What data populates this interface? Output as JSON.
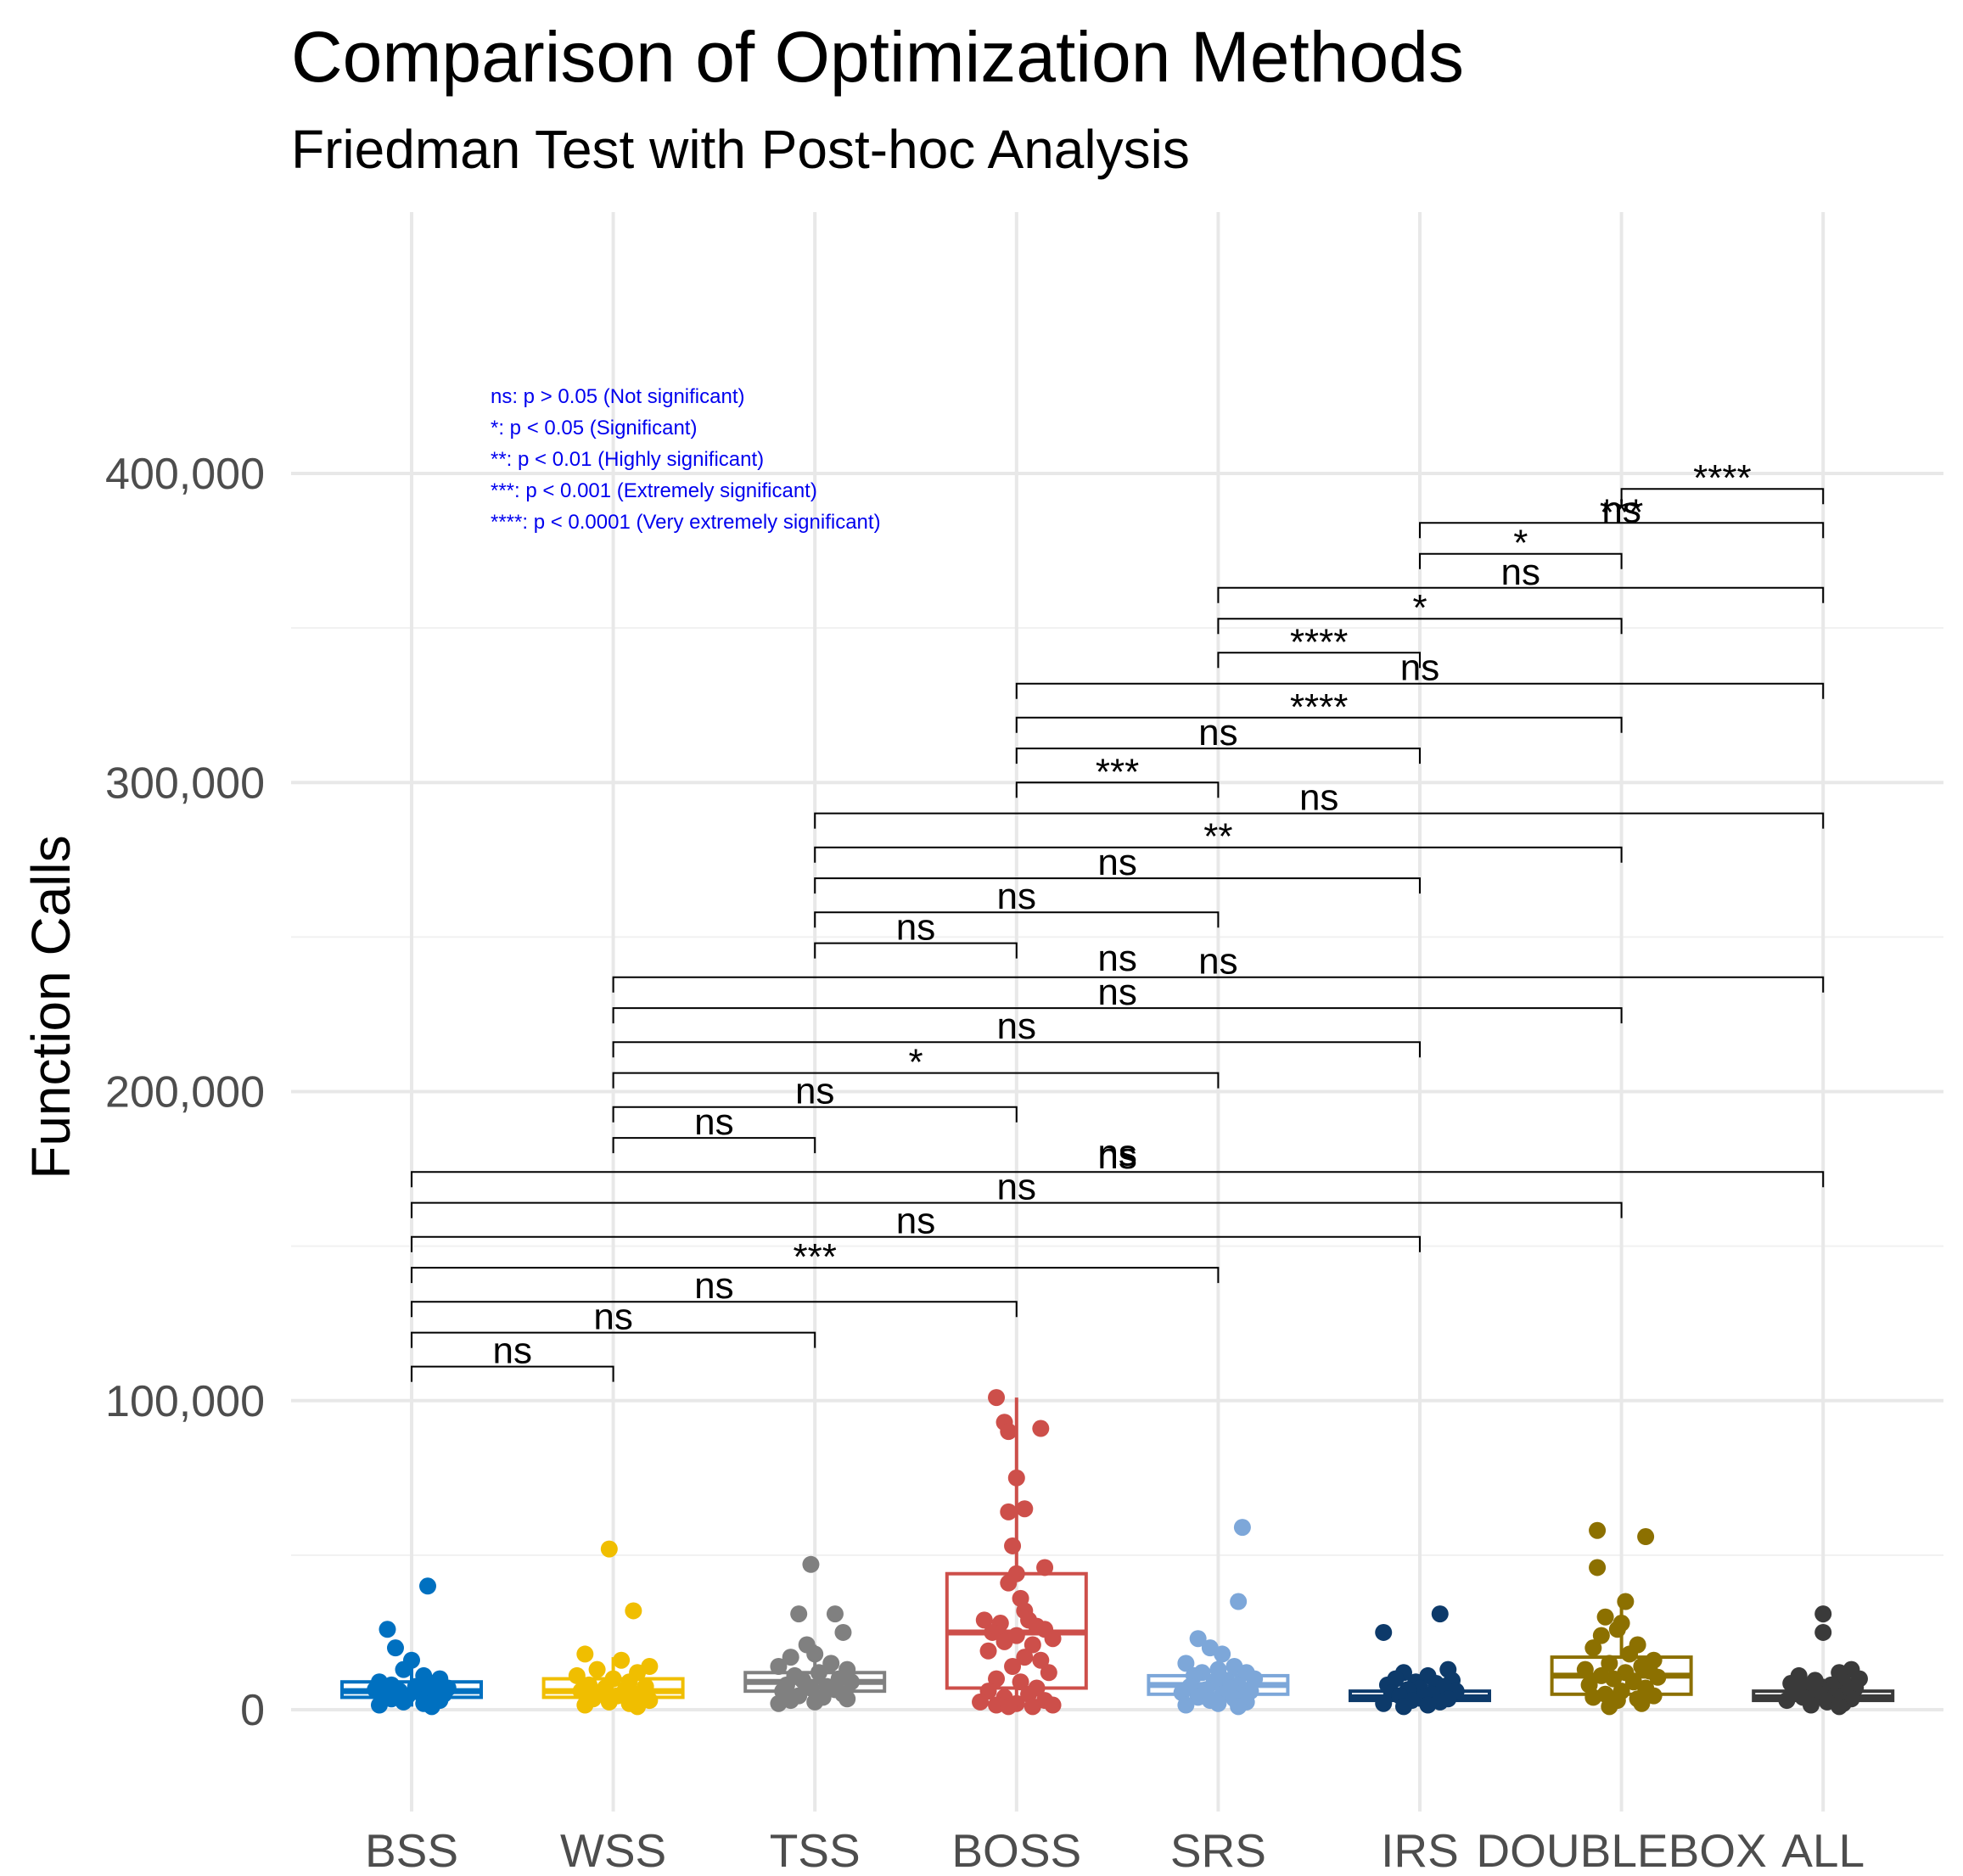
{
  "chart_data": {
    "type": "box",
    "title": "Comparison of Optimization Methods",
    "subtitle": "Friedman Test with Post-hoc Analysis",
    "ylabel": "Function Calls",
    "xlabel": "",
    "ylim": [
      -30000,
      450000
    ],
    "yticks": [
      0,
      100000,
      200000,
      300000,
      400000
    ],
    "ytick_labels": [
      "0",
      "100,000",
      "200,000",
      "300,000",
      "400,000"
    ],
    "grid": true,
    "categories": [
      "BSS",
      "WSS",
      "TSS",
      "BOSS",
      "SRS",
      "IRS",
      "DOUBLEBOX",
      "ALL"
    ],
    "colors": [
      "#0070c0",
      "#f0be00",
      "#808080",
      "#cd4f4a",
      "#7da7d9",
      "#0d3a6a",
      "#8c7000",
      "#3a3a3a"
    ],
    "boxes": [
      {
        "q1": 4000,
        "median": 6000,
        "q3": 9000,
        "whisker_low": 1000,
        "whisker_high": 16000
      },
      {
        "q1": 4000,
        "median": 6000,
        "q3": 10000,
        "whisker_low": 1000,
        "whisker_high": 17000
      },
      {
        "q1": 6000,
        "median": 9000,
        "q3": 12000,
        "whisker_low": 2000,
        "whisker_high": 21000
      },
      {
        "q1": 7000,
        "median": 25000,
        "q3": 44000,
        "whisker_low": 1000,
        "whisker_high": 101000
      },
      {
        "q1": 5000,
        "median": 8000,
        "q3": 11000,
        "whisker_low": 1000,
        "whisker_high": 20000
      },
      {
        "q1": 3000,
        "median": 4000,
        "q3": 6000,
        "whisker_low": 1000,
        "whisker_high": 10000
      },
      {
        "q1": 5000,
        "median": 11000,
        "q3": 17000,
        "whisker_low": 1000,
        "whisker_high": 34000
      },
      {
        "q1": 3000,
        "median": 4000,
        "q3": 6000,
        "whisker_low": 1000,
        "whisker_high": 10000
      }
    ],
    "points": [
      [
        [
          0.08,
          40000
        ],
        [
          -0.12,
          26000
        ],
        [
          -0.08,
          20000
        ],
        [
          0.0,
          16000
        ],
        [
          -0.04,
          13000
        ],
        [
          0.06,
          11000
        ],
        [
          0.14,
          10000
        ],
        [
          -0.16,
          9000
        ],
        [
          0.1,
          8500
        ],
        [
          -0.1,
          8000
        ],
        [
          0.02,
          7500
        ],
        [
          0.18,
          7000
        ],
        [
          -0.18,
          6500
        ],
        [
          0.12,
          6000
        ],
        [
          -0.06,
          6000
        ],
        [
          0.04,
          5500
        ],
        [
          -0.14,
          5000
        ],
        [
          0.16,
          5000
        ],
        [
          -0.02,
          4500
        ],
        [
          0.08,
          4000
        ],
        [
          -0.1,
          3500
        ],
        [
          0.14,
          3000
        ],
        [
          -0.04,
          2500
        ],
        [
          0.06,
          2000
        ],
        [
          -0.16,
          1500
        ],
        [
          0.1,
          1000
        ]
      ],
      [
        [
          -0.02,
          52000
        ],
        [
          0.1,
          32000
        ],
        [
          -0.14,
          18000
        ],
        [
          0.04,
          16000
        ],
        [
          0.18,
          14000
        ],
        [
          -0.08,
          13000
        ],
        [
          0.12,
          12000
        ],
        [
          -0.18,
          11000
        ],
        [
          0.0,
          10000
        ],
        [
          0.08,
          9000
        ],
        [
          -0.12,
          8000
        ],
        [
          0.16,
          7500
        ],
        [
          -0.04,
          7000
        ],
        [
          0.06,
          6500
        ],
        [
          -0.16,
          6000
        ],
        [
          0.14,
          5500
        ],
        [
          -0.06,
          5000
        ],
        [
          0.02,
          4500
        ],
        [
          0.1,
          4000
        ],
        [
          -0.1,
          3500
        ],
        [
          0.18,
          3000
        ],
        [
          -0.02,
          2500
        ],
        [
          0.08,
          2000
        ],
        [
          -0.14,
          1500
        ],
        [
          0.12,
          1000
        ]
      ],
      [
        [
          -0.02,
          47000
        ],
        [
          -0.08,
          31000
        ],
        [
          0.1,
          31000
        ],
        [
          0.14,
          25000
        ],
        [
          -0.04,
          21000
        ],
        [
          0.0,
          18000
        ],
        [
          -0.12,
          17000
        ],
        [
          0.08,
          15000
        ],
        [
          -0.18,
          14000
        ],
        [
          0.16,
          13000
        ],
        [
          0.02,
          12000
        ],
        [
          -0.1,
          11000
        ],
        [
          0.12,
          10000
        ],
        [
          -0.06,
          9500
        ],
        [
          0.18,
          9000
        ],
        [
          -0.14,
          8000
        ],
        [
          0.06,
          7500
        ],
        [
          -0.02,
          7000
        ],
        [
          0.1,
          6500
        ],
        [
          -0.16,
          6000
        ],
        [
          0.14,
          5000
        ],
        [
          -0.08,
          4500
        ],
        [
          0.04,
          4000
        ],
        [
          0.16,
          3500
        ],
        [
          -0.12,
          3000
        ],
        [
          0.0,
          2500
        ],
        [
          -0.18,
          2000
        ]
      ],
      [
        [
          -0.1,
          101000
        ],
        [
          -0.06,
          93000
        ],
        [
          -0.04,
          90000
        ],
        [
          0.12,
          91000
        ],
        [
          0.0,
          75000
        ],
        [
          0.04,
          65000
        ],
        [
          -0.04,
          64000
        ],
        [
          -0.02,
          53000
        ],
        [
          0.14,
          46000
        ],
        [
          0.0,
          44000
        ],
        [
          -0.04,
          41000
        ],
        [
          0.02,
          36000
        ],
        [
          0.04,
          32000
        ],
        [
          -0.16,
          29000
        ],
        [
          0.06,
          29000
        ],
        [
          -0.08,
          28000
        ],
        [
          0.1,
          27000
        ],
        [
          0.14,
          26000
        ],
        [
          -0.12,
          25000
        ],
        [
          0.0,
          24000
        ],
        [
          0.18,
          23000
        ],
        [
          -0.06,
          22000
        ],
        [
          0.08,
          21000
        ],
        [
          -0.14,
          19000
        ],
        [
          0.04,
          17000
        ],
        [
          0.12,
          16000
        ],
        [
          -0.02,
          14000
        ],
        [
          0.16,
          12000
        ],
        [
          -0.1,
          10000
        ],
        [
          0.02,
          9000
        ],
        [
          0.1,
          7000
        ],
        [
          -0.14,
          6000
        ],
        [
          0.06,
          5000
        ],
        [
          -0.06,
          4000
        ],
        [
          0.14,
          3000
        ],
        [
          -0.18,
          2500
        ],
        [
          0.0,
          2000
        ],
        [
          0.18,
          1500
        ],
        [
          -0.1,
          1500
        ],
        [
          0.08,
          1000
        ],
        [
          -0.04,
          1000
        ]
      ],
      [
        [
          0.12,
          59000
        ],
        [
          0.1,
          35000
        ],
        [
          -0.1,
          23000
        ],
        [
          -0.04,
          20000
        ],
        [
          0.02,
          18000
        ],
        [
          -0.16,
          15000
        ],
        [
          0.08,
          14000
        ],
        [
          0.0,
          13000
        ],
        [
          -0.08,
          12000
        ],
        [
          0.14,
          12000
        ],
        [
          -0.12,
          11000
        ],
        [
          0.18,
          10000
        ],
        [
          0.04,
          9500
        ],
        [
          -0.02,
          9000
        ],
        [
          0.1,
          8000
        ],
        [
          -0.14,
          7500
        ],
        [
          0.06,
          7000
        ],
        [
          -0.06,
          6500
        ],
        [
          0.16,
          6000
        ],
        [
          -0.18,
          5500
        ],
        [
          0.02,
          5000
        ],
        [
          0.12,
          4500
        ],
        [
          -0.1,
          4000
        ],
        [
          0.08,
          3500
        ],
        [
          -0.04,
          3000
        ],
        [
          0.14,
          2500
        ],
        [
          0.0,
          2000
        ],
        [
          -0.16,
          1500
        ],
        [
          0.1,
          1000
        ]
      ],
      [
        [
          0.1,
          31000
        ],
        [
          -0.18,
          25000
        ],
        [
          0.14,
          13000
        ],
        [
          -0.08,
          12000
        ],
        [
          0.04,
          11000
        ],
        [
          -0.12,
          10000
        ],
        [
          0.16,
          9500
        ],
        [
          -0.02,
          9000
        ],
        [
          0.08,
          8500
        ],
        [
          -0.16,
          8000
        ],
        [
          0.12,
          7500
        ],
        [
          0.0,
          7000
        ],
        [
          -0.06,
          6500
        ],
        [
          0.18,
          6000
        ],
        [
          -0.14,
          5500
        ],
        [
          0.06,
          5000
        ],
        [
          -0.1,
          4500
        ],
        [
          0.02,
          4000
        ],
        [
          0.14,
          3500
        ],
        [
          -0.04,
          3000
        ],
        [
          0.1,
          2500
        ],
        [
          -0.18,
          2000
        ],
        [
          0.04,
          1500
        ],
        [
          -0.08,
          1000
        ]
      ],
      [
        [
          -0.12,
          58000
        ],
        [
          0.12,
          56000
        ],
        [
          -0.12,
          46000
        ],
        [
          0.02,
          35000
        ],
        [
          -0.08,
          30000
        ],
        [
          0.0,
          28000
        ],
        [
          -0.02,
          26000
        ],
        [
          -0.1,
          24000
        ],
        [
          0.08,
          21000
        ],
        [
          -0.14,
          20000
        ],
        [
          0.04,
          18000
        ],
        [
          0.16,
          16000
        ],
        [
          -0.06,
          15000
        ],
        [
          0.1,
          14000
        ],
        [
          -0.18,
          13000
        ],
        [
          0.14,
          12500
        ],
        [
          0.02,
          12000
        ],
        [
          -0.1,
          11000
        ],
        [
          0.18,
          10500
        ],
        [
          -0.04,
          10000
        ],
        [
          0.06,
          9000
        ],
        [
          -0.16,
          8000
        ],
        [
          0.12,
          7000
        ],
        [
          0.0,
          6000
        ],
        [
          -0.08,
          5000
        ],
        [
          0.16,
          4500
        ],
        [
          -0.14,
          4000
        ],
        [
          0.08,
          3500
        ],
        [
          -0.02,
          3000
        ],
        [
          0.1,
          2000
        ],
        [
          -0.06,
          1000
        ]
      ],
      [
        [
          0.0,
          31000
        ],
        [
          0.0,
          25000
        ],
        [
          0.14,
          13000
        ],
        [
          0.08,
          12000
        ],
        [
          -0.12,
          11000
        ],
        [
          0.18,
          10000
        ],
        [
          -0.04,
          9500
        ],
        [
          0.1,
          9000
        ],
        [
          -0.16,
          8500
        ],
        [
          0.04,
          8000
        ],
        [
          -0.08,
          7500
        ],
        [
          0.16,
          7000
        ],
        [
          0.0,
          6500
        ],
        [
          -0.14,
          6000
        ],
        [
          0.12,
          5500
        ],
        [
          -0.02,
          5000
        ],
        [
          0.06,
          4500
        ],
        [
          -0.1,
          4000
        ],
        [
          0.14,
          3500
        ],
        [
          -0.18,
          3000
        ],
        [
          0.02,
          2500
        ],
        [
          0.1,
          2000
        ],
        [
          -0.06,
          1500
        ],
        [
          0.08,
          1000
        ]
      ]
    ],
    "legend_lines": [
      "ns: p > 0.05 (Not significant)",
      "*: p < 0.05 (Significant)",
      "**: p < 0.01 (Highly significant)",
      "***: p < 0.001 (Extremely significant)",
      "****: p < 0.0001  (Very extremely significant)"
    ],
    "comparisons": [
      {
        "a": 0,
        "b": 1,
        "y": 111000,
        "label": "ns"
      },
      {
        "a": 0,
        "b": 2,
        "y": 122000,
        "label": "ns"
      },
      {
        "a": 0,
        "b": 3,
        "y": 132000,
        "label": "ns"
      },
      {
        "a": 0,
        "b": 4,
        "y": 143000,
        "label": "***"
      },
      {
        "a": 0,
        "b": 5,
        "y": 153000,
        "label": "ns"
      },
      {
        "a": 0,
        "b": 6,
        "y": 164000,
        "label": "ns"
      },
      {
        "a": 0,
        "b": 7,
        "y": 174000,
        "label": "ns"
      },
      {
        "a": 1,
        "b": 2,
        "y": 185000,
        "label": "ns"
      },
      {
        "a": 1,
        "b": 3,
        "y": 195000,
        "label": "ns"
      },
      {
        "a": 1,
        "b": 4,
        "y": 206000,
        "label": "*"
      },
      {
        "a": 1,
        "b": 5,
        "y": 216000,
        "label": "ns"
      },
      {
        "a": 1,
        "b": 6,
        "y": 227000,
        "label": "ns"
      },
      {
        "a": 1,
        "b": 7,
        "y": 237000,
        "label": "ns"
      },
      {
        "a": 2,
        "b": 3,
        "y": 248000,
        "label": "ns"
      },
      {
        "a": 2,
        "b": 4,
        "y": 258000,
        "label": "ns"
      },
      {
        "a": 2,
        "b": 5,
        "y": 269000,
        "label": "ns"
      },
      {
        "a": 2,
        "b": 6,
        "y": 279000,
        "label": "**"
      },
      {
        "a": 2,
        "b": 7,
        "y": 290000,
        "label": "ns"
      },
      {
        "a": 3,
        "b": 4,
        "y": 300000,
        "label": "***"
      },
      {
        "a": 3,
        "b": 5,
        "y": 311000,
        "label": "ns"
      },
      {
        "a": 3,
        "b": 6,
        "y": 321000,
        "label": "****"
      },
      {
        "a": 3,
        "b": 7,
        "y": 332000,
        "label": "ns"
      },
      {
        "a": 4,
        "b": 5,
        "y": 342000,
        "label": "****"
      },
      {
        "a": 4,
        "b": 6,
        "y": 353000,
        "label": "*"
      },
      {
        "a": 4,
        "b": 7,
        "y": 363000,
        "label": "ns"
      },
      {
        "a": 5,
        "b": 6,
        "y": 374000,
        "label": "*"
      },
      {
        "a": 5,
        "b": 7,
        "y": 384000,
        "label": "***"
      },
      {
        "a": 6,
        "b": 7,
        "y": 395000,
        "label": "****"
      }
    ],
    "floating_labels": [
      {
        "cat": 3.5,
        "y": 243000,
        "label": "ns"
      },
      {
        "cat": 3.5,
        "y": 180000,
        "label": "ns"
      },
      {
        "cat": 6.0,
        "y": 388000,
        "label": "ns"
      }
    ]
  }
}
